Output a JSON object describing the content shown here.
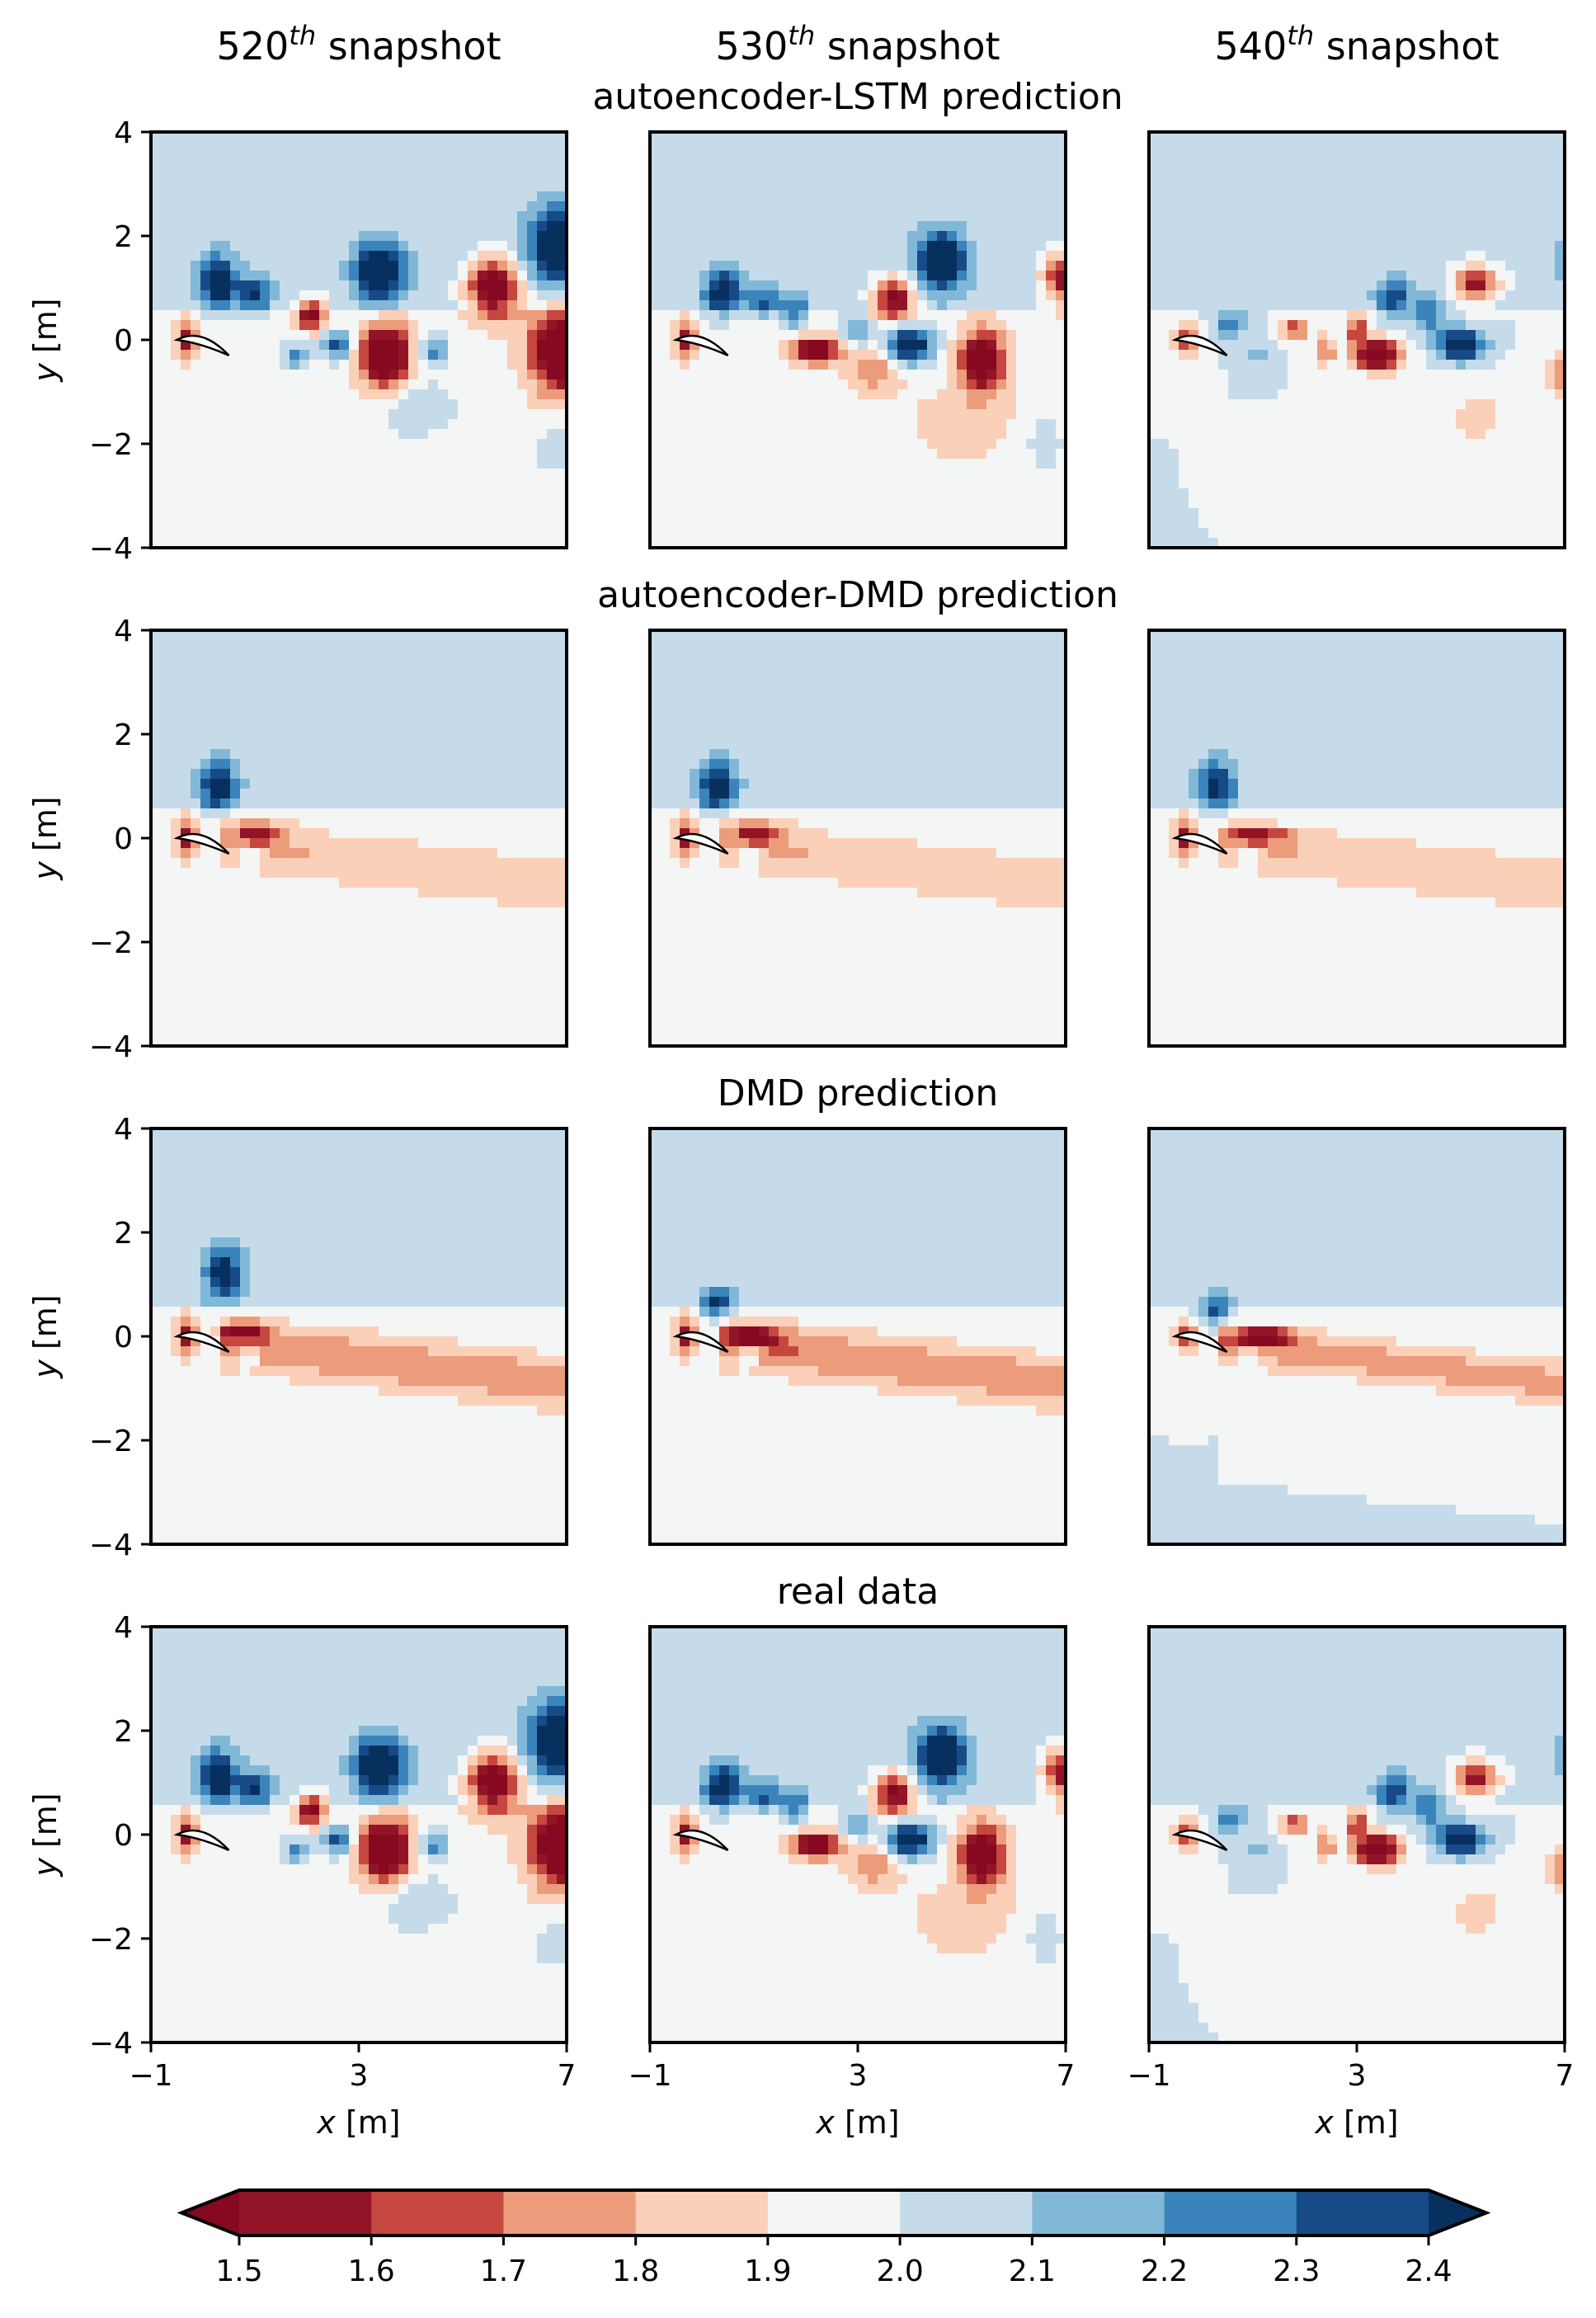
{
  "chart_data": {
    "type": "heatmap",
    "column_titles": [
      {
        "num": "520",
        "sup": "th",
        "rest": " snapshot"
      },
      {
        "num": "530",
        "sup": "th",
        "rest": " snapshot"
      },
      {
        "num": "540",
        "sup": "th",
        "rest": " snapshot"
      }
    ],
    "row_titles": [
      "autoencoder-LSTM prediction",
      "autoencoder-DMD prediction",
      "DMD prediction",
      "real data"
    ],
    "xlabel": {
      "var": "x",
      "unit": " [m]"
    },
    "ylabel": {
      "var": "y",
      "unit": " [m]"
    },
    "xlim": [
      -1,
      7
    ],
    "ylim": [
      -4,
      4
    ],
    "xticks": [
      -1,
      3,
      7
    ],
    "xtick_labels": [
      "−1",
      "3",
      "7"
    ],
    "yticks": [
      4,
      2,
      0,
      -2,
      -4
    ],
    "ytick_labels": [
      "4",
      "2",
      "0",
      "−2",
      "−4"
    ],
    "colorbar": {
      "levels": [
        1.5,
        1.6,
        1.7,
        1.8,
        1.9,
        2.0,
        2.1,
        2.2,
        2.3,
        2.4
      ],
      "tick_labels": [
        "1.5",
        "1.6",
        "1.7",
        "1.8",
        "1.9",
        "2.0",
        "2.1",
        "2.2",
        "2.3",
        "2.4"
      ],
      "colors": [
        "#860821",
        "#911526",
        "#c5473f",
        "#ec9b7b",
        "#fbd0b9",
        "#f4f5f5",
        "#c6dbea",
        "#81b8d8",
        "#3a84bb",
        "#174b87",
        "#08305f"
      ],
      "extend": "both"
    },
    "panels": [
      [
        {
          "snapshot": 520,
          "background_lower": 1.95,
          "background_upper": 2.05,
          "wake_band": 0,
          "blobs": [
            {
              "x": 0.3,
              "y": 1.1,
              "a": 0.5,
              "sx": 0.35,
              "sy": 0.5
            },
            {
              "x": 1.0,
              "y": 0.9,
              "a": 0.35,
              "sx": 0.3,
              "sy": 0.35
            },
            {
              "x": 1.8,
              "y": -0.3,
              "a": 0.3,
              "sx": 0.25,
              "sy": 0.25
            },
            {
              "x": 2.1,
              "y": 0.5,
              "a": -0.6,
              "sx": 0.25,
              "sy": 0.3
            },
            {
              "x": 2.6,
              "y": -0.1,
              "a": 0.4,
              "sx": 0.3,
              "sy": 0.3
            },
            {
              "x": 3.4,
              "y": 1.3,
              "a": 0.6,
              "sx": 0.45,
              "sy": 0.55
            },
            {
              "x": 3.5,
              "y": -0.3,
              "a": -0.7,
              "sx": 0.5,
              "sy": 0.6
            },
            {
              "x": 4.4,
              "y": -0.2,
              "a": 0.3,
              "sx": 0.3,
              "sy": 0.3
            },
            {
              "x": 5.6,
              "y": 1.0,
              "a": -0.7,
              "sx": 0.5,
              "sy": 0.55
            },
            {
              "x": 6.9,
              "y": 1.8,
              "a": 0.6,
              "sx": 0.6,
              "sy": 0.7
            },
            {
              "x": 6.9,
              "y": -0.2,
              "a": -0.7,
              "sx": 0.6,
              "sy": 0.8
            },
            {
              "x": 4.1,
              "y": -1.3,
              "a": 0.12,
              "sx": 0.8,
              "sy": 0.6
            },
            {
              "x": 6.9,
              "y": -2.1,
              "a": 0.12,
              "sx": 0.6,
              "sy": 0.5
            }
          ]
        },
        {
          "snapshot": 530,
          "background_lower": 1.95,
          "background_upper": 2.05,
          "wake_band": 0,
          "blobs": [
            {
              "x": 0.4,
              "y": 0.9,
              "a": 0.45,
              "sx": 0.35,
              "sy": 0.45
            },
            {
              "x": 1.2,
              "y": 0.7,
              "a": 0.3,
              "sx": 0.3,
              "sy": 0.3
            },
            {
              "x": 1.8,
              "y": 0.5,
              "a": 0.3,
              "sx": 0.25,
              "sy": 0.3
            },
            {
              "x": 2.2,
              "y": -0.2,
              "a": -0.6,
              "sx": 0.45,
              "sy": 0.25
            },
            {
              "x": 3.0,
              "y": 0.2,
              "a": 0.3,
              "sx": 0.3,
              "sy": 0.3
            },
            {
              "x": 3.3,
              "y": -0.6,
              "a": -0.25,
              "sx": 0.5,
              "sy": 0.4
            },
            {
              "x": 3.7,
              "y": 0.8,
              "a": -0.6,
              "sx": 0.4,
              "sy": 0.4
            },
            {
              "x": 4.0,
              "y": -0.1,
              "a": 0.6,
              "sx": 0.45,
              "sy": 0.35
            },
            {
              "x": 4.6,
              "y": 1.5,
              "a": 0.6,
              "sx": 0.45,
              "sy": 0.55
            },
            {
              "x": 5.4,
              "y": -0.4,
              "a": -0.6,
              "sx": 0.45,
              "sy": 0.6
            },
            {
              "x": 6.9,
              "y": 1.2,
              "a": -0.5,
              "sx": 0.35,
              "sy": 0.5
            },
            {
              "x": 5.0,
              "y": -1.6,
              "a": -0.12,
              "sx": 1.0,
              "sy": 0.7
            },
            {
              "x": 6.6,
              "y": -2.0,
              "a": 0.12,
              "sx": 0.35,
              "sy": 0.5
            }
          ]
        },
        {
          "snapshot": 540,
          "background_lower": 2.0,
          "background_upper": 2.05,
          "wake_band": 0,
          "blobs": [
            {
              "x": 0.6,
              "y": 0.3,
              "a": 0.3,
              "sx": 0.3,
              "sy": 0.25
            },
            {
              "x": 1.1,
              "y": -0.3,
              "a": 0.2,
              "sx": 0.2,
              "sy": 0.2
            },
            {
              "x": 1.8,
              "y": 0.2,
              "a": -0.4,
              "sx": 0.25,
              "sy": 0.2
            },
            {
              "x": 2.4,
              "y": -0.2,
              "a": -0.3,
              "sx": 0.2,
              "sy": 0.3
            },
            {
              "x": 3.0,
              "y": 0.2,
              "a": -0.4,
              "sx": 0.2,
              "sy": 0.3
            },
            {
              "x": 3.4,
              "y": -0.3,
              "a": -0.7,
              "sx": 0.45,
              "sy": 0.3
            },
            {
              "x": 3.7,
              "y": 0.8,
              "a": 0.35,
              "sx": 0.3,
              "sy": 0.35
            },
            {
              "x": 4.4,
              "y": 0.5,
              "a": 0.3,
              "sx": 0.3,
              "sy": 0.3
            },
            {
              "x": 5.0,
              "y": -0.1,
              "a": 0.6,
              "sx": 0.45,
              "sy": 0.3
            },
            {
              "x": 5.3,
              "y": 1.1,
              "a": -0.5,
              "sx": 0.45,
              "sy": 0.35
            },
            {
              "x": 5.3,
              "y": -1.5,
              "a": -0.12,
              "sx": 1.0,
              "sy": 0.8
            },
            {
              "x": 7.0,
              "y": -0.7,
              "a": -0.3,
              "sx": 0.3,
              "sy": 0.5
            },
            {
              "x": 7.0,
              "y": 1.5,
              "a": 0.12,
              "sx": 0.3,
              "sy": 0.4
            }
          ]
        }
      ],
      [
        {
          "snapshot": 520,
          "background_lower": 1.95,
          "background_upper": 2.05,
          "wake_band": -0.15,
          "blobs": [
            {
              "x": 0.3,
              "y": 1.0,
              "a": 0.45,
              "sx": 0.35,
              "sy": 0.45
            },
            {
              "x": 1.1,
              "y": 0.1,
              "a": -0.35,
              "sx": 0.5,
              "sy": 0.2
            },
            {
              "x": 0.9,
              "y": -0.4,
              "a": 0.2,
              "sx": 0.2,
              "sy": 0.2
            }
          ]
        },
        {
          "snapshot": 530,
          "background_lower": 1.95,
          "background_upper": 2.05,
          "wake_band": -0.15,
          "blobs": [
            {
              "x": 0.3,
              "y": 1.0,
              "a": 0.45,
              "sx": 0.35,
              "sy": 0.45
            },
            {
              "x": 1.1,
              "y": 0.1,
              "a": -0.35,
              "sx": 0.5,
              "sy": 0.2
            },
            {
              "x": 0.9,
              "y": -0.4,
              "a": 0.2,
              "sx": 0.2,
              "sy": 0.2
            }
          ]
        },
        {
          "snapshot": 540,
          "background_lower": 1.95,
          "background_upper": 2.05,
          "wake_band": -0.15,
          "blobs": [
            {
              "x": 0.3,
              "y": 1.0,
              "a": 0.4,
              "sx": 0.35,
              "sy": 0.45
            },
            {
              "x": 1.1,
              "y": 0.05,
              "a": -0.35,
              "sx": 0.6,
              "sy": 0.15
            },
            {
              "x": 0.9,
              "y": -0.4,
              "a": 0.2,
              "sx": 0.2,
              "sy": 0.2
            }
          ]
        }
      ],
      [
        {
          "snapshot": 520,
          "background_lower": 1.95,
          "background_upper": 2.05,
          "wake_band": -0.25,
          "blobs": [
            {
              "x": 0.4,
              "y": 1.2,
              "a": 0.45,
              "sx": 0.35,
              "sy": 0.5
            },
            {
              "x": 0.8,
              "y": 0.1,
              "a": -0.5,
              "sx": 0.4,
              "sy": 0.15
            },
            {
              "x": 0.9,
              "y": -0.4,
              "a": 0.2,
              "sx": 0.2,
              "sy": 0.2
            }
          ]
        },
        {
          "snapshot": 530,
          "background_lower": 1.95,
          "background_upper": 2.05,
          "wake_band": -0.25,
          "blobs": [
            {
              "x": 0.3,
              "y": 0.6,
              "a": 0.4,
              "sx": 0.3,
              "sy": 0.3
            },
            {
              "x": 1.0,
              "y": 0.0,
              "a": -0.5,
              "sx": 0.5,
              "sy": 0.15
            },
            {
              "x": 0.9,
              "y": -0.4,
              "a": 0.2,
              "sx": 0.2,
              "sy": 0.2
            }
          ]
        },
        {
          "snapshot": 540,
          "background_lower": 2.0,
          "background_upper": 2.05,
          "wake_band": -0.25,
          "blobs": [
            {
              "x": 0.3,
              "y": 0.5,
              "a": 0.35,
              "sx": 0.3,
              "sy": 0.3
            },
            {
              "x": 1.2,
              "y": 0.0,
              "a": -0.5,
              "sx": 0.6,
              "sy": 0.15
            },
            {
              "x": 0.9,
              "y": -0.4,
              "a": 0.15,
              "sx": 0.2,
              "sy": 0.2
            }
          ]
        }
      ],
      [
        {
          "snapshot": 520,
          "background_lower": 1.95,
          "background_upper": 2.05,
          "wake_band": 0,
          "blobs": [
            {
              "x": 0.3,
              "y": 1.1,
              "a": 0.5,
              "sx": 0.35,
              "sy": 0.5
            },
            {
              "x": 1.0,
              "y": 0.9,
              "a": 0.35,
              "sx": 0.3,
              "sy": 0.35
            },
            {
              "x": 1.8,
              "y": -0.3,
              "a": 0.3,
              "sx": 0.25,
              "sy": 0.25
            },
            {
              "x": 2.1,
              "y": 0.5,
              "a": -0.6,
              "sx": 0.25,
              "sy": 0.3
            },
            {
              "x": 2.6,
              "y": -0.1,
              "a": 0.4,
              "sx": 0.3,
              "sy": 0.3
            },
            {
              "x": 3.4,
              "y": 1.3,
              "a": 0.6,
              "sx": 0.45,
              "sy": 0.55
            },
            {
              "x": 3.5,
              "y": -0.3,
              "a": -0.7,
              "sx": 0.5,
              "sy": 0.6
            },
            {
              "x": 4.4,
              "y": -0.2,
              "a": 0.3,
              "sx": 0.3,
              "sy": 0.3
            },
            {
              "x": 5.6,
              "y": 1.0,
              "a": -0.7,
              "sx": 0.5,
              "sy": 0.55
            },
            {
              "x": 6.9,
              "y": 1.8,
              "a": 0.6,
              "sx": 0.6,
              "sy": 0.7
            },
            {
              "x": 6.9,
              "y": -0.2,
              "a": -0.7,
              "sx": 0.6,
              "sy": 0.8
            },
            {
              "x": 4.1,
              "y": -1.3,
              "a": 0.12,
              "sx": 0.8,
              "sy": 0.6
            },
            {
              "x": 6.9,
              "y": -2.1,
              "a": 0.12,
              "sx": 0.6,
              "sy": 0.5
            }
          ]
        },
        {
          "snapshot": 530,
          "background_lower": 1.95,
          "background_upper": 2.05,
          "wake_band": 0,
          "blobs": [
            {
              "x": 0.4,
              "y": 0.9,
              "a": 0.45,
              "sx": 0.35,
              "sy": 0.45
            },
            {
              "x": 1.2,
              "y": 0.7,
              "a": 0.3,
              "sx": 0.3,
              "sy": 0.3
            },
            {
              "x": 1.8,
              "y": 0.5,
              "a": 0.3,
              "sx": 0.25,
              "sy": 0.3
            },
            {
              "x": 2.2,
              "y": -0.2,
              "a": -0.6,
              "sx": 0.45,
              "sy": 0.25
            },
            {
              "x": 3.0,
              "y": 0.2,
              "a": 0.3,
              "sx": 0.3,
              "sy": 0.3
            },
            {
              "x": 3.3,
              "y": -0.6,
              "a": -0.25,
              "sx": 0.5,
              "sy": 0.4
            },
            {
              "x": 3.7,
              "y": 0.8,
              "a": -0.6,
              "sx": 0.4,
              "sy": 0.4
            },
            {
              "x": 4.0,
              "y": -0.1,
              "a": 0.6,
              "sx": 0.45,
              "sy": 0.35
            },
            {
              "x": 4.6,
              "y": 1.5,
              "a": 0.6,
              "sx": 0.45,
              "sy": 0.55
            },
            {
              "x": 5.4,
              "y": -0.4,
              "a": -0.6,
              "sx": 0.45,
              "sy": 0.6
            },
            {
              "x": 6.9,
              "y": 1.2,
              "a": -0.5,
              "sx": 0.35,
              "sy": 0.5
            },
            {
              "x": 5.0,
              "y": -1.6,
              "a": -0.12,
              "sx": 1.0,
              "sy": 0.7
            },
            {
              "x": 6.6,
              "y": -2.0,
              "a": 0.12,
              "sx": 0.35,
              "sy": 0.5
            }
          ]
        },
        {
          "snapshot": 540,
          "background_lower": 2.0,
          "background_upper": 2.05,
          "wake_band": 0,
          "blobs": [
            {
              "x": 0.6,
              "y": 0.3,
              "a": 0.3,
              "sx": 0.3,
              "sy": 0.25
            },
            {
              "x": 1.1,
              "y": -0.3,
              "a": 0.2,
              "sx": 0.2,
              "sy": 0.2
            },
            {
              "x": 1.8,
              "y": 0.2,
              "a": -0.4,
              "sx": 0.25,
              "sy": 0.2
            },
            {
              "x": 2.4,
              "y": -0.2,
              "a": -0.3,
              "sx": 0.2,
              "sy": 0.3
            },
            {
              "x": 3.0,
              "y": 0.2,
              "a": -0.4,
              "sx": 0.2,
              "sy": 0.3
            },
            {
              "x": 3.4,
              "y": -0.3,
              "a": -0.7,
              "sx": 0.45,
              "sy": 0.3
            },
            {
              "x": 3.7,
              "y": 0.8,
              "a": 0.35,
              "sx": 0.3,
              "sy": 0.35
            },
            {
              "x": 4.4,
              "y": 0.5,
              "a": 0.3,
              "sx": 0.3,
              "sy": 0.3
            },
            {
              "x": 5.0,
              "y": -0.1,
              "a": 0.6,
              "sx": 0.45,
              "sy": 0.3
            },
            {
              "x": 5.3,
              "y": 1.1,
              "a": -0.5,
              "sx": 0.45,
              "sy": 0.35
            },
            {
              "x": 5.3,
              "y": -1.5,
              "a": -0.12,
              "sx": 1.0,
              "sy": 0.8
            },
            {
              "x": 7.0,
              "y": -0.7,
              "a": -0.3,
              "sx": 0.3,
              "sy": 0.5
            },
            {
              "x": 7.0,
              "y": 1.5,
              "a": 0.12,
              "sx": 0.3,
              "sy": 0.4
            }
          ]
        }
      ]
    ]
  }
}
